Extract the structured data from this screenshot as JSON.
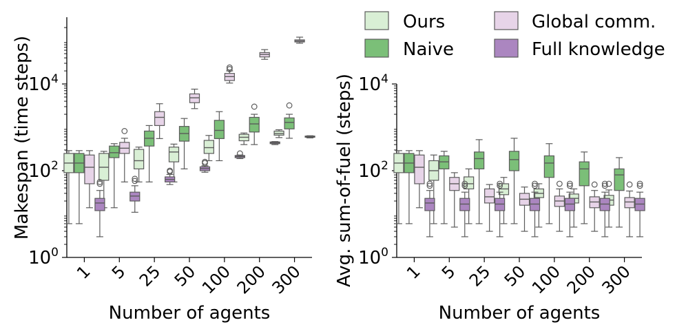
{
  "legend": {
    "placement": "top-right",
    "entries": [
      {
        "label": "Ours",
        "color": "#d9efd5"
      },
      {
        "label": "Naive",
        "color": "#7bbf78"
      },
      {
        "label": "Global comm.",
        "color": "#e7d4e8"
      },
      {
        "label": "Full knowledge",
        "color": "#ab86c0"
      }
    ]
  },
  "chart_data": [
    {
      "type": "box",
      "title": "",
      "xlabel": "Number of agents",
      "ylabel": "Makespan (time steps)",
      "yscale": "log",
      "ylim": [
        1,
        300000
      ],
      "yticks": [
        {
          "value": 1,
          "base": "10",
          "exp": "0"
        },
        {
          "value": 100,
          "base": "10",
          "exp": "2"
        },
        {
          "value": 10000,
          "base": "10",
          "exp": "4"
        }
      ],
      "categories": [
        "1",
        "5",
        "25",
        "50",
        "100",
        "200",
        "300"
      ],
      "series": [
        {
          "name": "Ours",
          "color": "#d9efd5",
          "boxes": [
            {
              "q1": 90,
              "median": 150,
              "q3": 250,
              "whislo": 6,
              "whishi": 290,
              "fliers": []
            },
            {
              "q1": 60,
              "median": 120,
              "q3": 250,
              "whislo": 14,
              "whishi": 280,
              "fliers": []
            },
            {
              "q1": 110,
              "median": 170,
              "q3": 310,
              "whislo": 55,
              "whishi": 350,
              "fliers": []
            },
            {
              "q1": 160,
              "median": 270,
              "q3": 350,
              "whislo": 55,
              "whishi": 410,
              "fliers": []
            },
            {
              "q1": 250,
              "median": 340,
              "q3": 500,
              "whislo": 170,
              "whishi": 650,
              "fliers": []
            },
            {
              "q1": 490,
              "median": 590,
              "q3": 690,
              "whislo": 400,
              "whishi": 740,
              "fliers": []
            },
            {
              "q1": 660,
              "median": 720,
              "q3": 820,
              "whislo": 580,
              "whishi": 880,
              "fliers": []
            }
          ]
        },
        {
          "name": "Naive",
          "color": "#7bbf78",
          "boxes": [
            {
              "q1": 90,
              "median": 150,
              "q3": 250,
              "whislo": 6,
              "whishi": 290,
              "fliers": []
            },
            {
              "q1": 200,
              "median": 260,
              "q3": 370,
              "whislo": 14,
              "whishi": 420,
              "fliers": []
            },
            {
              "q1": 370,
              "median": 560,
              "q3": 820,
              "whislo": 55,
              "whishi": 1100,
              "fliers": []
            },
            {
              "q1": 480,
              "median": 720,
              "q3": 1050,
              "whislo": 110,
              "whishi": 1600,
              "fliers": []
            },
            {
              "q1": 550,
              "median": 850,
              "q3": 1450,
              "whislo": 170,
              "whishi": 2300,
              "fliers": []
            },
            {
              "q1": 780,
              "median": 1200,
              "q3": 1700,
              "whislo": 400,
              "whishi": 2000,
              "fliers": [
                3000
              ]
            },
            {
              "q1": 920,
              "median": 1300,
              "q3": 1650,
              "whislo": 560,
              "whishi": 2000,
              "fliers": [
                3200
              ]
            }
          ]
        },
        {
          "name": "Global comm.",
          "color": "#e7d4e8",
          "boxes": [
            {
              "q1": 50,
              "median": 120,
              "q3": 230,
              "whislo": 14,
              "whishi": 290,
              "fliers": []
            },
            {
              "q1": 250,
              "median": 330,
              "q3": 450,
              "whislo": 55,
              "whishi": 560,
              "fliers": [
                820
              ]
            },
            {
              "q1": 1100,
              "median": 1700,
              "q3": 2300,
              "whislo": 550,
              "whishi": 3500,
              "fliers": []
            },
            {
              "q1": 3700,
              "median": 4800,
              "q3": 5900,
              "whislo": 2700,
              "whishi": 7600,
              "fliers": []
            },
            {
              "q1": 12000,
              "median": 14800,
              "q3": 17500,
              "whislo": 10500,
              "whishi": 20000,
              "fliers": [
                22000,
                24000
              ]
            },
            {
              "q1": 42000,
              "median": 48000,
              "q3": 53000,
              "whislo": 37000,
              "whishi": 62000,
              "fliers": []
            },
            {
              "q1": 93000,
              "median": 98000,
              "q3": 104000,
              "whislo": 87000,
              "whishi": 120000,
              "fliers": []
            }
          ]
        },
        {
          "name": "Full knowledge",
          "color": "#ab86c0",
          "boxes": [
            {
              "q1": 12,
              "median": 18,
              "q3": 23,
              "whislo": 3,
              "whishi": 35,
              "fliers": [
                50,
                55
              ]
            },
            {
              "q1": 20,
              "median": 26,
              "q3": 32,
              "whislo": 11,
              "whishi": 45,
              "fliers": [
                58,
                65
              ]
            },
            {
              "q1": 55,
              "median": 63,
              "q3": 72,
              "whislo": 48,
              "whishi": 82,
              "fliers": [
                95,
                100
              ]
            },
            {
              "q1": 100,
              "median": 112,
              "q3": 123,
              "whislo": 92,
              "whishi": 130,
              "fliers": [
                150,
                160
              ]
            },
            {
              "q1": 200,
              "median": 212,
              "q3": 224,
              "whislo": 190,
              "whishi": 230,
              "fliers": [
                250
              ]
            },
            {
              "q1": 420,
              "median": 440,
              "q3": 460,
              "whislo": 400,
              "whishi": 470,
              "fliers": []
            },
            {
              "q1": 590,
              "median": 610,
              "q3": 630,
              "whislo": 570,
              "whishi": 640,
              "fliers": []
            }
          ]
        }
      ]
    },
    {
      "type": "box",
      "title": "",
      "xlabel": "Number of agents",
      "ylabel": "Avg. sum-of-fuel (steps)",
      "yscale": "log",
      "ylim": [
        1,
        10000
      ],
      "yticks": [
        {
          "value": 1,
          "base": "10",
          "exp": "0"
        },
        {
          "value": 100,
          "base": "10",
          "exp": "2"
        },
        {
          "value": 10000,
          "base": "10",
          "exp": "4"
        }
      ],
      "categories": [
        "1",
        "5",
        "25",
        "50",
        "100",
        "200",
        "300"
      ],
      "series": [
        {
          "name": "Ours",
          "color": "#d9efd5",
          "boxes": [
            {
              "q1": 90,
              "median": 150,
              "q3": 250,
              "whislo": 6,
              "whishi": 290,
              "fliers": []
            },
            {
              "q1": 60,
              "median": 100,
              "q3": 170,
              "whislo": 6,
              "whishi": 230,
              "fliers": []
            },
            {
              "q1": 38,
              "median": 50,
              "q3": 72,
              "whislo": 6,
              "whishi": 110,
              "fliers": []
            },
            {
              "q1": 28,
              "median": 38,
              "q3": 50,
              "whislo": 6,
              "whishi": 70,
              "fliers": []
            },
            {
              "q1": 24,
              "median": 30,
              "q3": 38,
              "whislo": 5,
              "whishi": 50,
              "fliers": []
            },
            {
              "q1": 18,
              "median": 23,
              "q3": 29,
              "whislo": 5,
              "whishi": 38,
              "fliers": []
            },
            {
              "q1": 16,
              "median": 21,
              "q3": 27,
              "whislo": 5,
              "whishi": 36,
              "fliers": [
                50
              ]
            }
          ]
        },
        {
          "name": "Naive",
          "color": "#7bbf78",
          "boxes": [
            {
              "q1": 90,
              "median": 150,
              "q3": 250,
              "whislo": 6,
              "whishi": 290,
              "fliers": []
            },
            {
              "q1": 110,
              "median": 160,
              "q3": 220,
              "whislo": 6,
              "whishi": 280,
              "fliers": []
            },
            {
              "q1": 110,
              "median": 190,
              "q3": 270,
              "whislo": 6,
              "whishi": 520,
              "fliers": []
            },
            {
              "q1": 100,
              "median": 180,
              "q3": 280,
              "whislo": 6,
              "whishi": 560,
              "fliers": []
            },
            {
              "q1": 70,
              "median": 150,
              "q3": 220,
              "whislo": 6,
              "whishi": 420,
              "fliers": []
            },
            {
              "q1": 45,
              "median": 110,
              "q3": 160,
              "whislo": 6,
              "whishi": 270,
              "fliers": []
            },
            {
              "q1": 35,
              "median": 80,
              "q3": 110,
              "whislo": 5,
              "whishi": 200,
              "fliers": []
            }
          ]
        },
        {
          "name": "Global comm.",
          "color": "#e7d4e8",
          "boxes": [
            {
              "q1": 50,
              "median": 120,
              "q3": 230,
              "whislo": 14,
              "whishi": 290,
              "fliers": []
            },
            {
              "q1": 35,
              "median": 50,
              "q3": 70,
              "whislo": 5,
              "whishi": 90,
              "fliers": []
            },
            {
              "q1": 18,
              "median": 25,
              "q3": 38,
              "whislo": 4,
              "whishi": 48,
              "fliers": []
            },
            {
              "q1": 16,
              "median": 22,
              "q3": 30,
              "whislo": 4,
              "whishi": 42,
              "fliers": []
            },
            {
              "q1": 15,
              "median": 20,
              "q3": 26,
              "whislo": 4,
              "whishi": 38,
              "fliers": [
                50
              ]
            },
            {
              "q1": 14,
              "median": 19,
              "q3": 25,
              "whislo": 4,
              "whishi": 35,
              "fliers": [
                48
              ]
            },
            {
              "q1": 14,
              "median": 19,
              "q3": 24,
              "whislo": 3,
              "whishi": 34,
              "fliers": [
                48
              ]
            }
          ]
        },
        {
          "name": "Full knowledge",
          "color": "#ab86c0",
          "boxes": [
            {
              "q1": 12,
              "median": 18,
              "q3": 23,
              "whislo": 3,
              "whishi": 35,
              "fliers": [
                45,
                50
              ]
            },
            {
              "q1": 12,
              "median": 17,
              "q3": 23,
              "whislo": 3,
              "whishi": 32,
              "fliers": [
                45,
                50
              ]
            },
            {
              "q1": 12,
              "median": 17,
              "q3": 23,
              "whislo": 3,
              "whishi": 32,
              "fliers": [
                45,
                50
              ]
            },
            {
              "q1": 12,
              "median": 17,
              "q3": 23,
              "whislo": 3,
              "whishi": 32,
              "fliers": [
                45,
                50
              ]
            },
            {
              "q1": 12,
              "median": 17,
              "q3": 23,
              "whislo": 3,
              "whishi": 32,
              "fliers": [
                45,
                50
              ]
            },
            {
              "q1": 12,
              "median": 17,
              "q3": 23,
              "whislo": 3,
              "whishi": 32,
              "fliers": [
                45,
                50
              ]
            },
            {
              "q1": 12,
              "median": 17,
              "q3": 23,
              "whislo": 3,
              "whishi": 32,
              "fliers": [
                45,
                50
              ]
            }
          ]
        }
      ]
    }
  ]
}
